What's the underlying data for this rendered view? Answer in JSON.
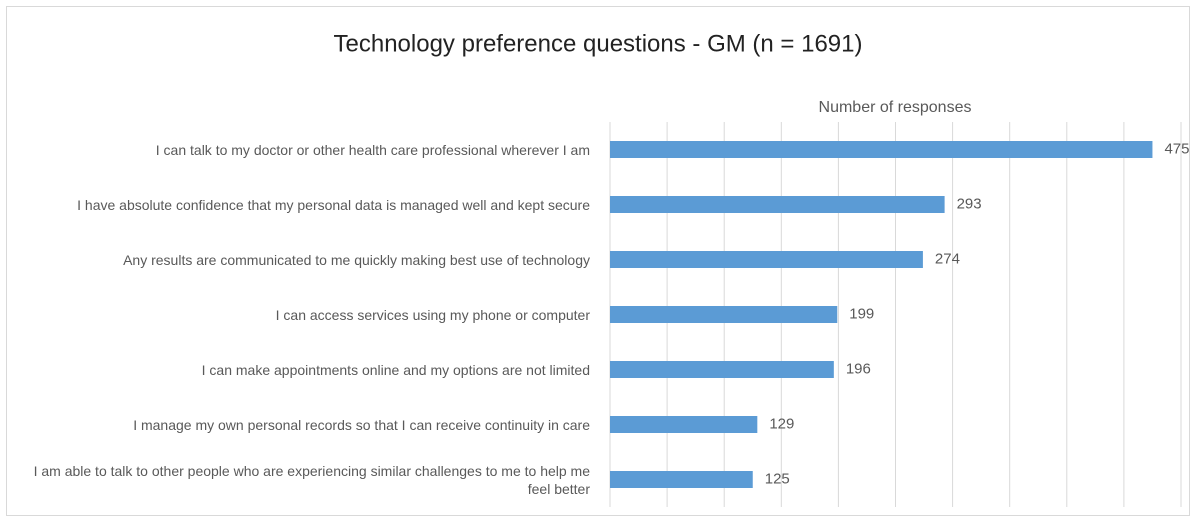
{
  "chart_data": {
    "type": "bar",
    "orientation": "horizontal",
    "title": "Technology preference questions - GM (n = 1691)",
    "x_label": "Number of responses",
    "categories": [
      "I can talk to my doctor or other health care professional wherever I am",
      "I have absolute confidence that my personal data is managed well and kept secure",
      "Any results are communicated to me quickly making best use of technology",
      "I can access services using my phone or computer",
      "I can make appointments online and my options are not limited",
      "I manage my own personal records so that I can receive continuity in care",
      "I am able to talk to other people who are experiencing similar challenges to me to help me feel better"
    ],
    "values": [
      475,
      293,
      274,
      199,
      196,
      129,
      125
    ],
    "color": "#5b9bd5",
    "xlim": [
      0,
      500
    ],
    "xticks": [
      0,
      50,
      100,
      150,
      200,
      250,
      300,
      350,
      400,
      450,
      500
    ],
    "grid": true
  }
}
